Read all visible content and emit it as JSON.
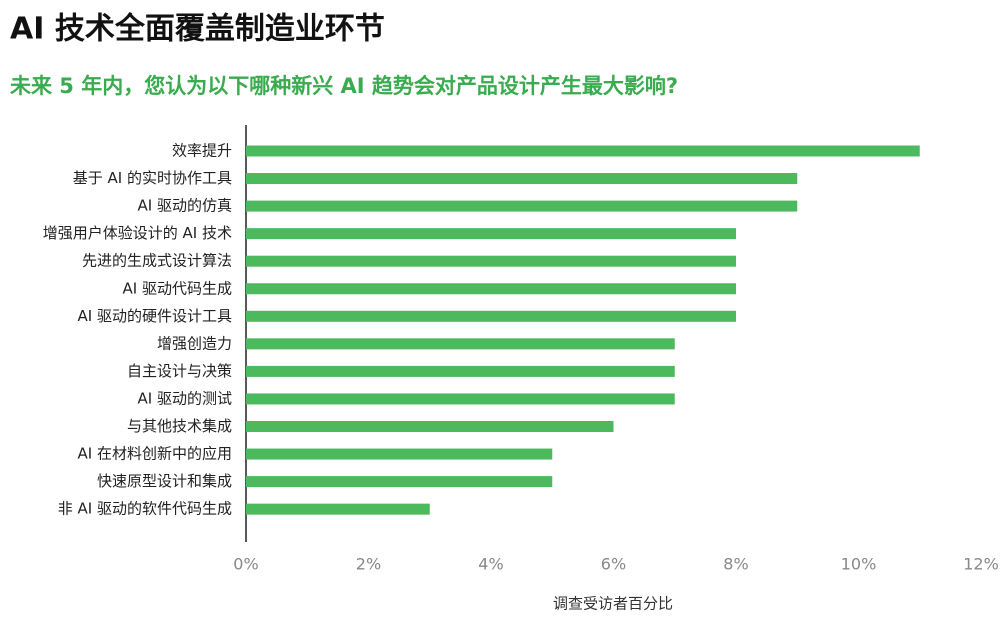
{
  "chart_data": {
    "type": "barh",
    "title": "AI 技术全面覆盖制造业环节",
    "subtitle": "未来 5 年内，您认为以下哪种新兴 AI 趋势会对产品设计产生最大影响?",
    "xlabel": "调查受访者百分比",
    "categories": [
      "效率提升",
      "基于 AI 的实时协作工具",
      "AI 驱动的仿真",
      "增强用户体验设计的 AI 技术",
      "先进的生成式设计算法",
      "AI 驱动代码生成",
      "AI 驱动的硬件设计工具",
      "增强创造力",
      "自主设计与决策",
      "AI 驱动的测试",
      "与其他技术集成",
      "AI 在材料创新中的应用",
      "快速原型设计和集成",
      "非 AI 驱动的软件代码生成"
    ],
    "values": [
      11,
      9,
      9,
      8,
      8,
      8,
      8,
      7,
      7,
      7,
      6,
      5,
      5,
      3
    ],
    "color": "#4cba5c",
    "xlim": [
      0,
      12
    ],
    "xticks": [
      {
        "value": 0,
        "label": "0%"
      },
      {
        "value": 2,
        "label": "2%"
      },
      {
        "value": 4,
        "label": "4%"
      },
      {
        "value": 6,
        "label": "6%"
      },
      {
        "value": 8,
        "label": "8%"
      },
      {
        "value": 10,
        "label": "10%"
      },
      {
        "value": 12,
        "label": "12%"
      }
    ],
    "grid": false
  }
}
